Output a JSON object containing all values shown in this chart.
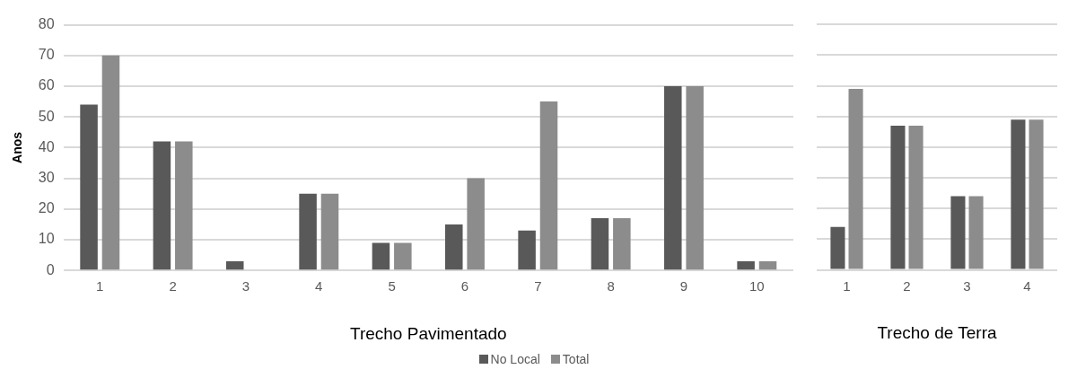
{
  "chart_data": [
    {
      "type": "bar",
      "xlabel": "Trecho Pavimentado",
      "ylabel": "Anos",
      "categories": [
        "1",
        "2",
        "3",
        "4",
        "5",
        "6",
        "7",
        "8",
        "9",
        "10"
      ],
      "series": [
        {
          "name": "No Local",
          "color": "#595959",
          "values": [
            54,
            42,
            3,
            25,
            9,
            15,
            13,
            17,
            60,
            3
          ]
        },
        {
          "name": "Total",
          "color": "#8c8c8c",
          "values": [
            70,
            42,
            null,
            25,
            9,
            30,
            55,
            17,
            60,
            3
          ]
        }
      ],
      "ylim": [
        0,
        80
      ],
      "yticks": [
        0,
        10,
        20,
        30,
        40,
        50,
        60,
        70,
        80
      ],
      "grid": "y",
      "legend": "bottom"
    },
    {
      "type": "bar",
      "xlabel": "Trecho de Terra",
      "categories": [
        "1",
        "2",
        "3",
        "4"
      ],
      "series": [
        {
          "color": "#595959",
          "values": [
            14,
            47,
            24,
            49
          ]
        },
        {
          "color": "#8c8c8c",
          "values": [
            59,
            47,
            24,
            49
          ]
        }
      ],
      "ylim": [
        0,
        80
      ],
      "yticks": [
        0,
        10,
        20,
        30,
        40,
        50,
        60,
        70,
        80
      ],
      "grid": "y",
      "tick_labels": "x"
    }
  ]
}
